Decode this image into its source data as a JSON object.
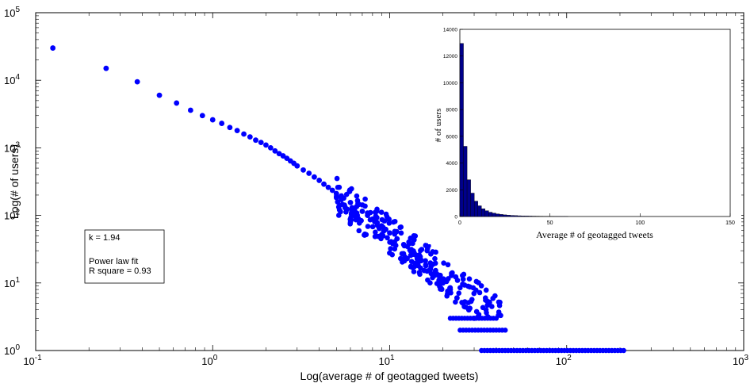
{
  "chart_data": [
    {
      "type": "scatter",
      "title": "",
      "xlabel": "Log(average # of geotagged tweets)",
      "ylabel": "Log(# of users)",
      "xscale": "log",
      "yscale": "log",
      "xlim": [
        0.1,
        1000
      ],
      "ylim": [
        1,
        100000
      ],
      "x_tick_labels": [
        {
          "base": "10",
          "exp": "-1"
        },
        {
          "base": "10",
          "exp": "0"
        },
        {
          "base": "10",
          "exp": "1"
        },
        {
          "base": "10",
          "exp": "2"
        },
        {
          "base": "10",
          "exp": "3"
        }
      ],
      "y_tick_labels": [
        {
          "base": "10",
          "exp": "0"
        },
        {
          "base": "10",
          "exp": "1"
        },
        {
          "base": "10",
          "exp": "2"
        },
        {
          "base": "10",
          "exp": "3"
        },
        {
          "base": "10",
          "exp": "4"
        },
        {
          "base": "10",
          "exp": "5"
        }
      ],
      "marker_color": "#0000ff",
      "annotation": {
        "lines": [
          "k = 1.94",
          "",
          "Power law fit",
          "R square = 0.93"
        ]
      },
      "series": [
        {
          "x": [
            0.125,
            0.25,
            0.375,
            0.5,
            0.625,
            0.75,
            0.875,
            1.0,
            1.125,
            1.25,
            1.375,
            1.5,
            1.625,
            1.75,
            1.875,
            2.0,
            2.125,
            2.25,
            2.375,
            2.5,
            2.625,
            2.75,
            2.875,
            3.0,
            3.25,
            3.5,
            3.75,
            4.0,
            4.25,
            4.5,
            4.75,
            5.0,
            5.5,
            6.0,
            6.5,
            7.0,
            7.5,
            8.0,
            8.5,
            9.0,
            9.5,
            10.0,
            11.0,
            12.0,
            13.0,
            14.0,
            15.0,
            16.0,
            17.0,
            18.0,
            19.0,
            20.0,
            22.0,
            24.0,
            26.0,
            28.0,
            30.0
          ],
          "y": [
            30000,
            15000,
            9500,
            6000,
            4600,
            3600,
            3000,
            2600,
            2300,
            2000,
            1800,
            1600,
            1450,
            1300,
            1200,
            1100,
            1000,
            900,
            820,
            760,
            700,
            640,
            590,
            540,
            470,
            420,
            370,
            330,
            290,
            260,
            235,
            210,
            180,
            155,
            135,
            115,
            100,
            88,
            78,
            70,
            62,
            55,
            45,
            37,
            31,
            26,
            22,
            18,
            16,
            13,
            11,
            10,
            8,
            6,
            5,
            4,
            3
          ]
        }
      ],
      "bands": [
        {
          "y": 3,
          "x_from": 22,
          "x_to": 40
        },
        {
          "y": 2,
          "x_from": 25,
          "x_to": 45
        },
        {
          "y": 1,
          "x_from": 33,
          "x_to": 210
        }
      ]
    },
    {
      "type": "bar",
      "title": "",
      "xlabel": "Average # of geotagged tweets",
      "ylabel": "# of users",
      "xlim": [
        0,
        150
      ],
      "ylim": [
        0,
        14000
      ],
      "x_ticks": [
        "0",
        "50",
        "100",
        "150"
      ],
      "y_ticks": [
        "0",
        "2000",
        "4000",
        "6000",
        "8000",
        "10000",
        "12000",
        "14000"
      ],
      "bar_color": "#00008b",
      "bin_width": 2,
      "values": [
        12950,
        5250,
        2750,
        1750,
        1150,
        800,
        580,
        430,
        320,
        250,
        195,
        155,
        125,
        100,
        82,
        68,
        56,
        47,
        40,
        34,
        29,
        25,
        21,
        18,
        15,
        13,
        11,
        9,
        8,
        7
      ]
    }
  ]
}
